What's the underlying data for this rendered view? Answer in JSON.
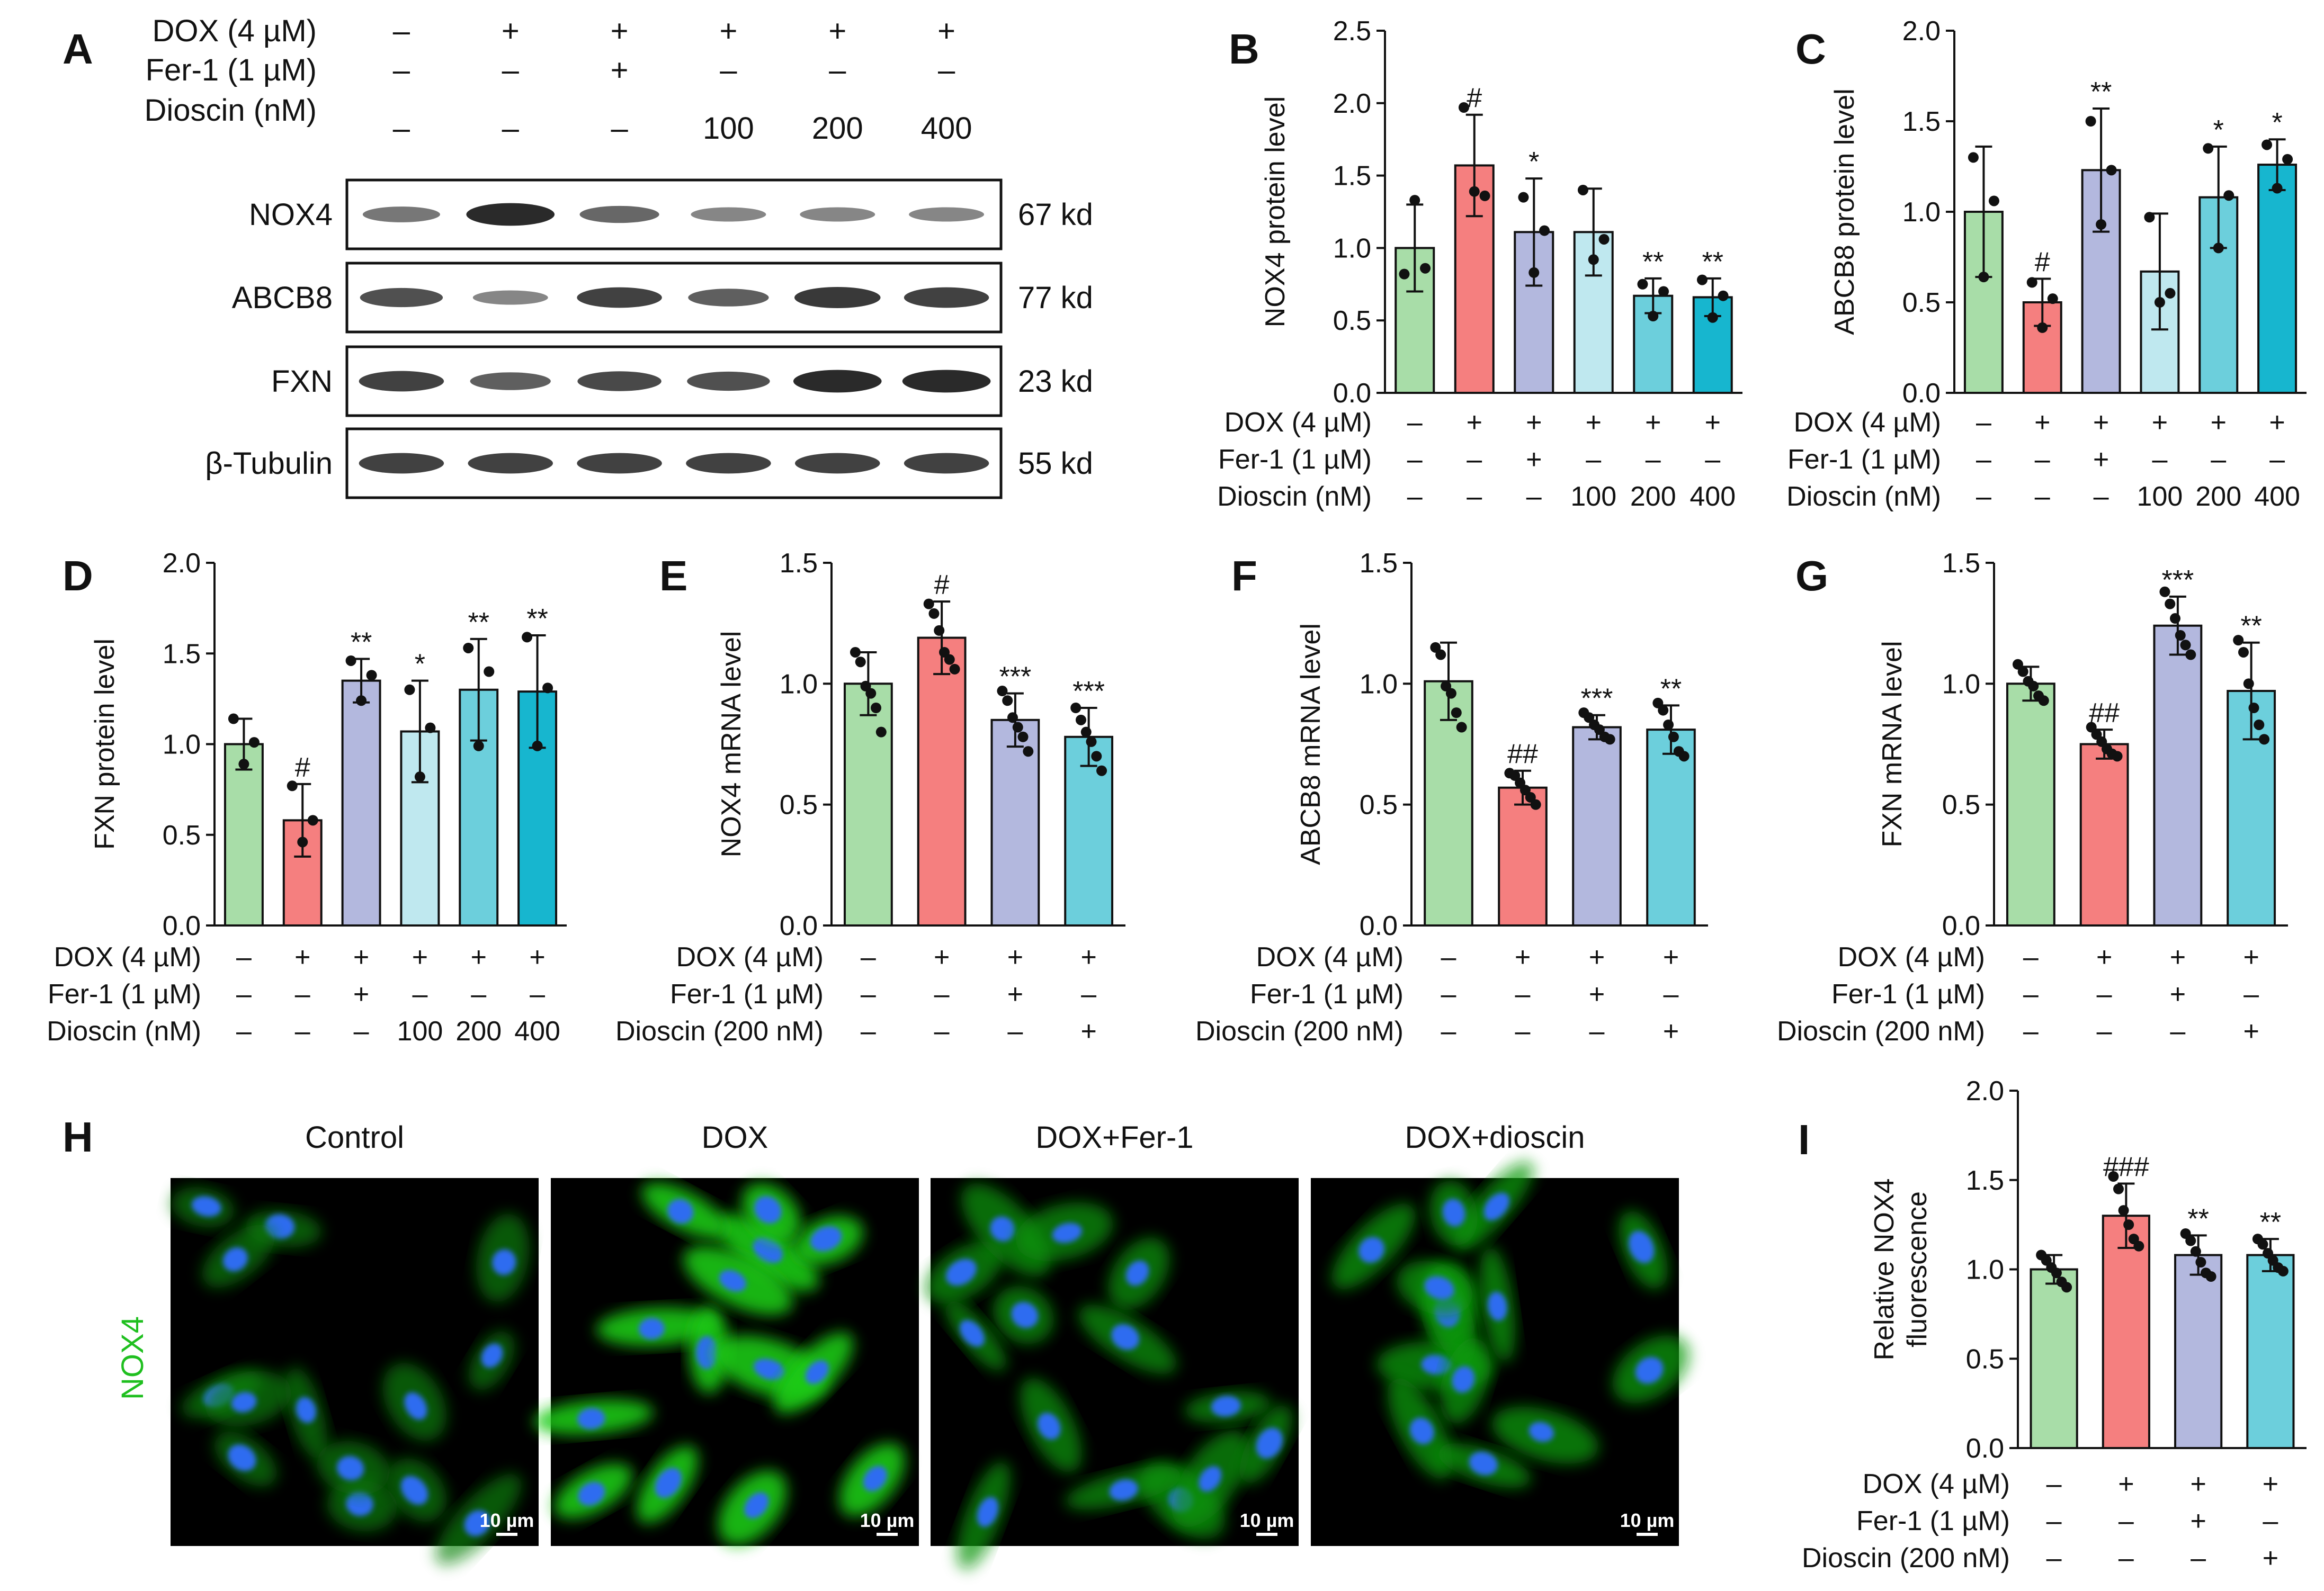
{
  "colors": {
    "control": "#a8dda8",
    "dox": "#f57f7f",
    "fer1": "#b3b8de",
    "dioscin100": "#bfe8ef",
    "dioscin200": "#6ccfdc",
    "dioscin400": "#17b6cf"
  },
  "panel_a": {
    "label": "A",
    "header_rows": [
      {
        "label": "DOX (4 µM)",
        "cells": [
          "–",
          "+",
          "+",
          "+",
          "+",
          "+"
        ]
      },
      {
        "label": "Fer-1 (1 µM)",
        "cells": [
          "–",
          "–",
          "+",
          "–",
          "–",
          "–"
        ]
      },
      {
        "label": "Dioscin (nM)",
        "cells": [
          "–",
          "–",
          "–",
          "100",
          "200",
          "400"
        ]
      }
    ],
    "blots": [
      {
        "protein": "NOX4",
        "size": "67 kd",
        "intensity": [
          0.45,
          0.95,
          0.55,
          0.35,
          0.35,
          0.35
        ]
      },
      {
        "protein": "ABCB8",
        "size": "77 kd",
        "intensity": [
          0.7,
          0.35,
          0.8,
          0.6,
          0.85,
          0.8
        ]
      },
      {
        "protein": "FXN",
        "size": "23 kd",
        "intensity": [
          0.8,
          0.6,
          0.75,
          0.7,
          0.95,
          0.95
        ]
      },
      {
        "protein": "β-Tubulin",
        "size": "55 kd",
        "intensity": [
          0.8,
          0.8,
          0.8,
          0.8,
          0.8,
          0.8
        ]
      }
    ]
  },
  "chart_data": [
    {
      "panel": "B",
      "type": "bar",
      "ylabel": "NOX4 protein level",
      "ylim": [
        0,
        2.5
      ],
      "yticks": [
        "0.0",
        "0.5",
        "1.0",
        "1.5",
        "2.0",
        "2.5"
      ],
      "cond_labels": [
        "DOX (4 µM)",
        "Fer-1 (1 µM)",
        "Dioscin (nM)"
      ],
      "cond_rows": [
        [
          "–",
          "+",
          "+",
          "+",
          "+",
          "+"
        ],
        [
          "–",
          "–",
          "+",
          "–",
          "–",
          "–"
        ],
        [
          "–",
          "–",
          "–",
          "100",
          "200",
          "400"
        ]
      ],
      "bars": [
        {
          "value": 1.0,
          "sd": 0.3,
          "color": "control",
          "points": [
            0.82,
            1.33,
            0.86
          ],
          "sig": ""
        },
        {
          "value": 1.57,
          "sd": 0.35,
          "color": "dox",
          "points": [
            1.97,
            1.39,
            1.36
          ],
          "sig": "#"
        },
        {
          "value": 1.11,
          "sd": 0.37,
          "color": "fer1",
          "points": [
            1.35,
            0.83,
            1.12
          ],
          "sig": "*"
        },
        {
          "value": 1.11,
          "sd": 0.3,
          "color": "dioscin100",
          "points": [
            1.4,
            0.92,
            1.06
          ],
          "sig": ""
        },
        {
          "value": 0.67,
          "sd": 0.12,
          "color": "dioscin200",
          "points": [
            0.75,
            0.53,
            0.7
          ],
          "sig": "**"
        },
        {
          "value": 0.66,
          "sd": 0.13,
          "color": "dioscin400",
          "points": [
            0.78,
            0.52,
            0.67
          ],
          "sig": "**"
        }
      ]
    },
    {
      "panel": "C",
      "type": "bar",
      "ylabel": "ABCB8 protein level",
      "ylim": [
        0,
        2.0
      ],
      "yticks": [
        "0.0",
        "0.5",
        "1.0",
        "1.5",
        "2.0"
      ],
      "cond_labels": [
        "DOX (4 µM)",
        "Fer-1 (1 µM)",
        "Dioscin (nM)"
      ],
      "cond_rows": [
        [
          "–",
          "+",
          "+",
          "+",
          "+",
          "+"
        ],
        [
          "–",
          "–",
          "+",
          "–",
          "–",
          "–"
        ],
        [
          "–",
          "–",
          "–",
          "100",
          "200",
          "400"
        ]
      ],
      "bars": [
        {
          "value": 1.0,
          "sd": 0.36,
          "color": "control",
          "points": [
            1.3,
            0.64,
            1.06
          ],
          "sig": ""
        },
        {
          "value": 0.5,
          "sd": 0.13,
          "color": "dox",
          "points": [
            0.61,
            0.36,
            0.52
          ],
          "sig": "#"
        },
        {
          "value": 1.23,
          "sd": 0.34,
          "color": "fer1",
          "points": [
            1.5,
            0.93,
            1.23
          ],
          "sig": "**"
        },
        {
          "value": 0.67,
          "sd": 0.32,
          "color": "dioscin100",
          "points": [
            0.97,
            0.5,
            0.55
          ],
          "sig": ""
        },
        {
          "value": 1.08,
          "sd": 0.28,
          "color": "dioscin200",
          "points": [
            1.35,
            0.8,
            1.09
          ],
          "sig": "*"
        },
        {
          "value": 1.26,
          "sd": 0.14,
          "color": "dioscin400",
          "points": [
            1.37,
            1.13,
            1.29
          ],
          "sig": "*"
        }
      ]
    },
    {
      "panel": "D",
      "type": "bar",
      "ylabel": "FXN protein level",
      "ylim": [
        0,
        2.0
      ],
      "yticks": [
        "0.0",
        "0.5",
        "1.0",
        "1.5",
        "2.0"
      ],
      "cond_labels": [
        "DOX (4 µM)",
        "Fer-1 (1 µM)",
        "Dioscin (nM)"
      ],
      "cond_rows": [
        [
          "–",
          "+",
          "+",
          "+",
          "+",
          "+"
        ],
        [
          "–",
          "–",
          "+",
          "–",
          "–",
          "–"
        ],
        [
          "–",
          "–",
          "–",
          "100",
          "200",
          "400"
        ]
      ],
      "bars": [
        {
          "value": 1.0,
          "sd": 0.14,
          "color": "control",
          "points": [
            1.14,
            0.89,
            1.01
          ],
          "sig": ""
        },
        {
          "value": 0.58,
          "sd": 0.2,
          "color": "dox",
          "points": [
            0.77,
            0.46,
            0.58
          ],
          "sig": "#"
        },
        {
          "value": 1.35,
          "sd": 0.12,
          "color": "fer1",
          "points": [
            1.46,
            1.24,
            1.38
          ],
          "sig": "**"
        },
        {
          "value": 1.07,
          "sd": 0.28,
          "color": "dioscin100",
          "points": [
            1.3,
            0.82,
            1.09
          ],
          "sig": "*"
        },
        {
          "value": 1.3,
          "sd": 0.28,
          "color": "dioscin200",
          "points": [
            1.53,
            0.99,
            1.4
          ],
          "sig": "**"
        },
        {
          "value": 1.29,
          "sd": 0.31,
          "color": "dioscin400",
          "points": [
            1.59,
            0.99,
            1.31
          ],
          "sig": "**"
        }
      ]
    },
    {
      "panel": "E",
      "type": "bar",
      "ylabel": "NOX4 mRNA level",
      "ylim": [
        0,
        1.5
      ],
      "yticks": [
        "0.0",
        "0.5",
        "1.0",
        "1.5"
      ],
      "cond_labels": [
        "DOX (4 µM)",
        "Fer-1 (1 µM)",
        "Dioscin (200 nM)"
      ],
      "cond_rows": [
        [
          "–",
          "+",
          "+",
          "+"
        ],
        [
          "–",
          "–",
          "+",
          "–"
        ],
        [
          "–",
          "–",
          "–",
          "+"
        ]
      ],
      "bars": [
        {
          "value": 1.0,
          "sd": 0.13,
          "color": "control",
          "points": [
            1.13,
            1.09,
            0.99,
            0.96,
            0.9,
            0.8
          ],
          "sig": ""
        },
        {
          "value": 1.19,
          "sd": 0.15,
          "color": "dox",
          "points": [
            1.33,
            1.29,
            1.22,
            1.13,
            1.1,
            1.06
          ],
          "sig": "#"
        },
        {
          "value": 0.85,
          "sd": 0.11,
          "color": "fer1",
          "points": [
            0.97,
            0.93,
            0.86,
            0.82,
            0.78,
            0.72
          ],
          "sig": "***"
        },
        {
          "value": 0.78,
          "sd": 0.12,
          "color": "dioscin200",
          "points": [
            0.9,
            0.85,
            0.8,
            0.76,
            0.7,
            0.64
          ],
          "sig": "***"
        }
      ]
    },
    {
      "panel": "F",
      "type": "bar",
      "ylabel": "ABCB8 mRNA level",
      "ylim": [
        0,
        1.5
      ],
      "yticks": [
        "0.0",
        "0.5",
        "1.0",
        "1.5"
      ],
      "cond_labels": [
        "DOX (4 µM)",
        "Fer-1 (1 µM)",
        "Dioscin (200 nM)"
      ],
      "cond_rows": [
        [
          "–",
          "+",
          "+",
          "+"
        ],
        [
          "–",
          "–",
          "+",
          "–"
        ],
        [
          "–",
          "–",
          "–",
          "+"
        ]
      ],
      "bars": [
        {
          "value": 1.01,
          "sd": 0.16,
          "color": "control",
          "points": [
            1.15,
            1.12,
            0.99,
            0.96,
            0.88,
            0.82
          ],
          "sig": ""
        },
        {
          "value": 0.57,
          "sd": 0.07,
          "color": "dox",
          "points": [
            0.63,
            0.62,
            0.59,
            0.56,
            0.53,
            0.5
          ],
          "sig": "##"
        },
        {
          "value": 0.82,
          "sd": 0.05,
          "color": "fer1",
          "points": [
            0.88,
            0.86,
            0.83,
            0.81,
            0.78,
            0.77
          ],
          "sig": "***"
        },
        {
          "value": 0.81,
          "sd": 0.1,
          "color": "dioscin200",
          "points": [
            0.92,
            0.89,
            0.83,
            0.78,
            0.72,
            0.7
          ],
          "sig": "**"
        }
      ]
    },
    {
      "panel": "G",
      "type": "bar",
      "ylabel": "FXN mRNA level",
      "ylim": [
        0,
        1.5
      ],
      "yticks": [
        "0.0",
        "0.5",
        "1.0",
        "1.5"
      ],
      "cond_labels": [
        "DOX (4 µM)",
        "Fer-1 (1 µM)",
        "Dioscin (200 nM)"
      ],
      "cond_rows": [
        [
          "–",
          "+",
          "+",
          "+"
        ],
        [
          "–",
          "–",
          "+",
          "–"
        ],
        [
          "–",
          "–",
          "–",
          "+"
        ]
      ],
      "bars": [
        {
          "value": 1.0,
          "sd": 0.07,
          "color": "control",
          "points": [
            1.08,
            1.05,
            1.01,
            0.99,
            0.95,
            0.93
          ],
          "sig": ""
        },
        {
          "value": 0.75,
          "sd": 0.06,
          "color": "dox",
          "points": [
            0.82,
            0.79,
            0.76,
            0.73,
            0.71,
            0.7
          ],
          "sig": "##"
        },
        {
          "value": 1.24,
          "sd": 0.12,
          "color": "fer1",
          "points": [
            1.38,
            1.33,
            1.27,
            1.2,
            1.16,
            1.12
          ],
          "sig": "***"
        },
        {
          "value": 0.97,
          "sd": 0.2,
          "color": "dioscin200",
          "points": [
            1.18,
            1.13,
            1.0,
            0.9,
            0.83,
            0.77
          ],
          "sig": "**"
        }
      ]
    },
    {
      "panel": "I",
      "type": "bar",
      "ylabel": [
        "Relative NOX4",
        "fluorescence"
      ],
      "ylim": [
        0,
        2.0
      ],
      "yticks": [
        "0.0",
        "0.5",
        "1.0",
        "1.5",
        "2.0"
      ],
      "cond_labels": [
        "DOX (4 µM)",
        "Fer-1 (1 µM)",
        "Dioscin (200 nM)"
      ],
      "cond_rows": [
        [
          "–",
          "+",
          "+",
          "+"
        ],
        [
          "–",
          "–",
          "+",
          "–"
        ],
        [
          "–",
          "–",
          "–",
          "+"
        ]
      ],
      "bars": [
        {
          "value": 1.0,
          "sd": 0.08,
          "color": "control",
          "points": [
            1.08,
            1.05,
            1.01,
            0.98,
            0.93,
            0.9
          ],
          "sig": ""
        },
        {
          "value": 1.3,
          "sd": 0.18,
          "color": "dox",
          "points": [
            1.52,
            1.45,
            1.33,
            1.25,
            1.17,
            1.13
          ],
          "sig": "###"
        },
        {
          "value": 1.08,
          "sd": 0.11,
          "color": "fer1",
          "points": [
            1.2,
            1.16,
            1.1,
            1.04,
            0.98,
            0.96
          ],
          "sig": "**"
        },
        {
          "value": 1.08,
          "sd": 0.09,
          "color": "dioscin200",
          "points": [
            1.17,
            1.14,
            1.09,
            1.05,
            1.01,
            0.99
          ],
          "sig": "**"
        }
      ]
    }
  ],
  "panel_h": {
    "label": "H",
    "side_label": "NOX4",
    "scale_label": "10 µm",
    "panels": [
      {
        "title": "Control",
        "green": 0.35
      },
      {
        "title": "DOX",
        "green": 0.95
      },
      {
        "title": "DOX+Fer-1",
        "green": 0.5
      },
      {
        "title": "DOX+dioscin",
        "green": 0.55
      }
    ]
  }
}
